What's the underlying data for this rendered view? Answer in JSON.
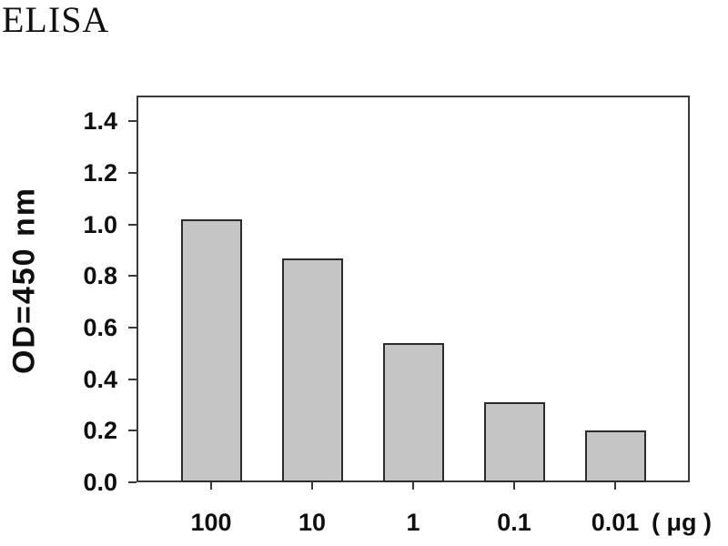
{
  "title": "ELISA",
  "chart_data": {
    "type": "bar",
    "title": "ELISA",
    "ylabel": "OD=450 nm",
    "xlabel": "( μg )",
    "categories": [
      "100",
      "10",
      "1",
      "0.1",
      "0.01"
    ],
    "values": [
      1.02,
      0.87,
      0.54,
      0.31,
      0.2
    ],
    "ylim": [
      0,
      1.5
    ],
    "ytick_labels": [
      "0.0",
      "0.2",
      "0.4",
      "0.6",
      "0.8",
      "1.0",
      "1.2",
      "1.4"
    ],
    "grid": false,
    "legend": "none",
    "bar_fill": "#c5c5c5",
    "bar_border": "#2c2c2c",
    "axis_color": "#3a3a3a",
    "text_color": "#0f0f0f"
  }
}
